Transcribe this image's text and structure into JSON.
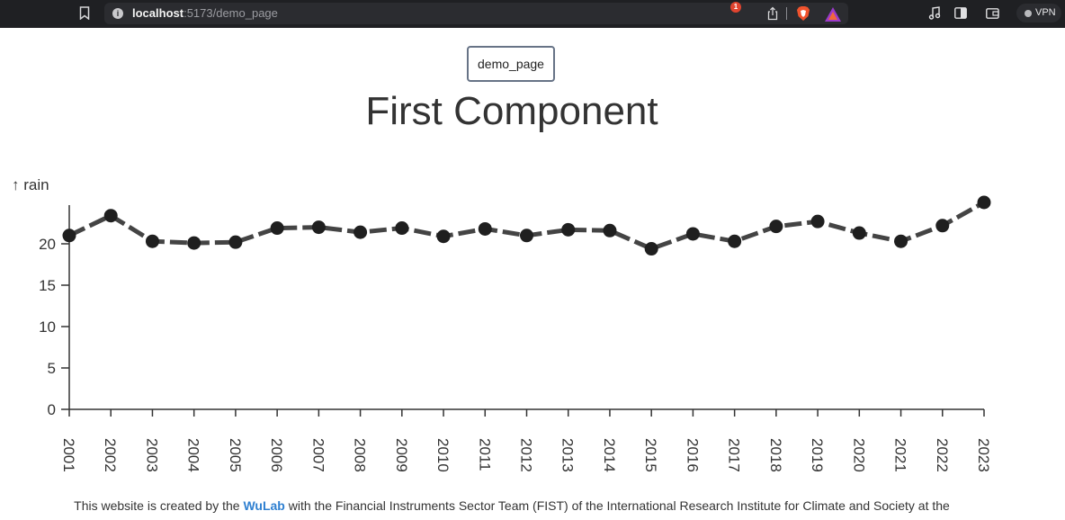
{
  "browser": {
    "url_host": "localhost",
    "url_path": ":5173/demo_page",
    "info_glyph": "i",
    "rewards_badge_count": "1",
    "vpn_label": "VPN"
  },
  "page": {
    "nav_button_label": "demo_page",
    "title": "First Component",
    "footer_prefix": "This website is created by the ",
    "footer_link": "WuLab",
    "footer_suffix": " with the Financial Instruments Sector Team (FIST) of the International Research Institute for Climate and Society at the"
  },
  "chart_data": {
    "type": "line",
    "ylabel": "↑ rain",
    "x": [
      "2001",
      "2002",
      "2003",
      "2004",
      "2005",
      "2006",
      "2007",
      "2008",
      "2009",
      "2010",
      "2011",
      "2012",
      "2013",
      "2014",
      "2015",
      "2016",
      "2017",
      "2018",
      "2019",
      "2020",
      "2021",
      "2022",
      "2023"
    ],
    "values": [
      21.0,
      23.4,
      20.3,
      20.1,
      20.2,
      21.9,
      22.0,
      21.4,
      21.9,
      20.9,
      21.8,
      21.0,
      21.7,
      21.6,
      19.4,
      21.2,
      20.3,
      22.1,
      22.7,
      21.3,
      20.3,
      22.2,
      25.0
    ],
    "yticks": [
      0,
      5,
      10,
      15,
      20
    ],
    "ylim": [
      0,
      25
    ],
    "line_color": "#444444",
    "marker_color": "#1f1f1f",
    "grid": false
  }
}
